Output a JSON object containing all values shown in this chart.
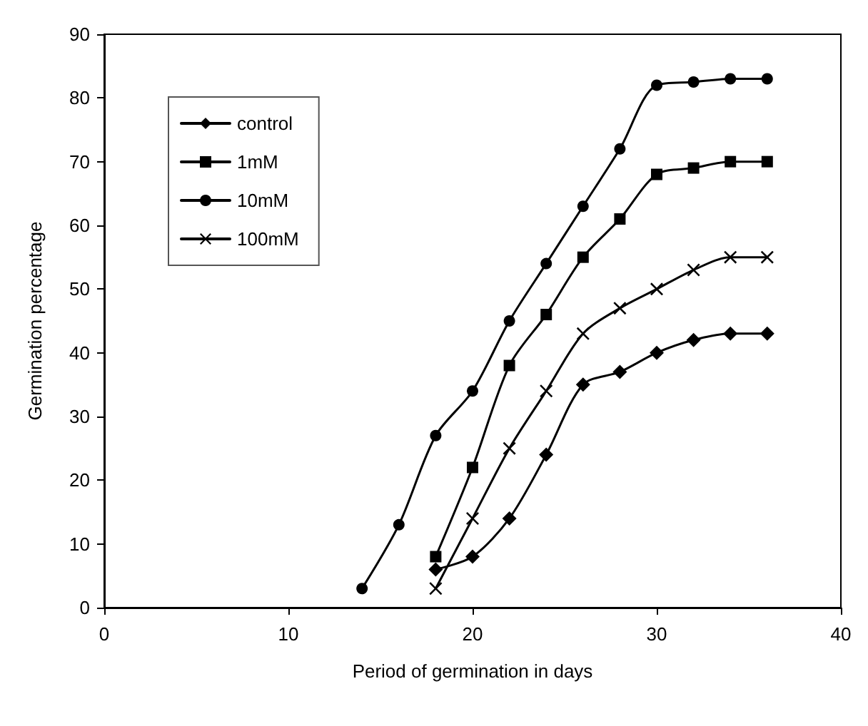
{
  "chart_data": {
    "type": "line",
    "xlabel": "Period of germination in days",
    "ylabel": "Germination percentage",
    "xlim": [
      0,
      40
    ],
    "xticks": [
      0,
      10,
      20,
      30,
      40
    ],
    "ylim": [
      0,
      90
    ],
    "yticks": [
      0,
      10,
      20,
      30,
      40,
      50,
      60,
      70,
      80,
      90
    ],
    "grid": false,
    "legend": "top left",
    "line_style": "solid",
    "series": [
      {
        "name": "control",
        "color": "#000000",
        "marker": "diamond",
        "x": [
          18,
          20,
          22,
          24,
          26,
          28,
          30,
          32,
          34,
          36
        ],
        "values": [
          6,
          8,
          14,
          24,
          35,
          37,
          40,
          42,
          43,
          43
        ]
      },
      {
        "name": "1mM",
        "color": "#000000",
        "marker": "square",
        "x": [
          18,
          20,
          22,
          24,
          26,
          28,
          30,
          32,
          34,
          36
        ],
        "values": [
          8,
          22,
          38,
          46,
          55,
          61,
          68,
          69,
          70,
          70
        ]
      },
      {
        "name": "10mM",
        "color": "#000000",
        "marker": "circle",
        "x": [
          14,
          16,
          18,
          20,
          22,
          24,
          26,
          28,
          30,
          32,
          34,
          36
        ],
        "values": [
          3,
          13,
          27,
          34,
          45,
          54,
          63,
          72,
          82,
          82.5,
          83,
          83
        ]
      },
      {
        "name": "100mM",
        "color": "#000000",
        "marker": "cross",
        "x": [
          18,
          20,
          22,
          24,
          26,
          28,
          30,
          32,
          34,
          36
        ],
        "values": [
          3,
          14,
          25,
          34,
          43,
          47,
          50,
          53,
          55,
          55
        ]
      }
    ]
  }
}
